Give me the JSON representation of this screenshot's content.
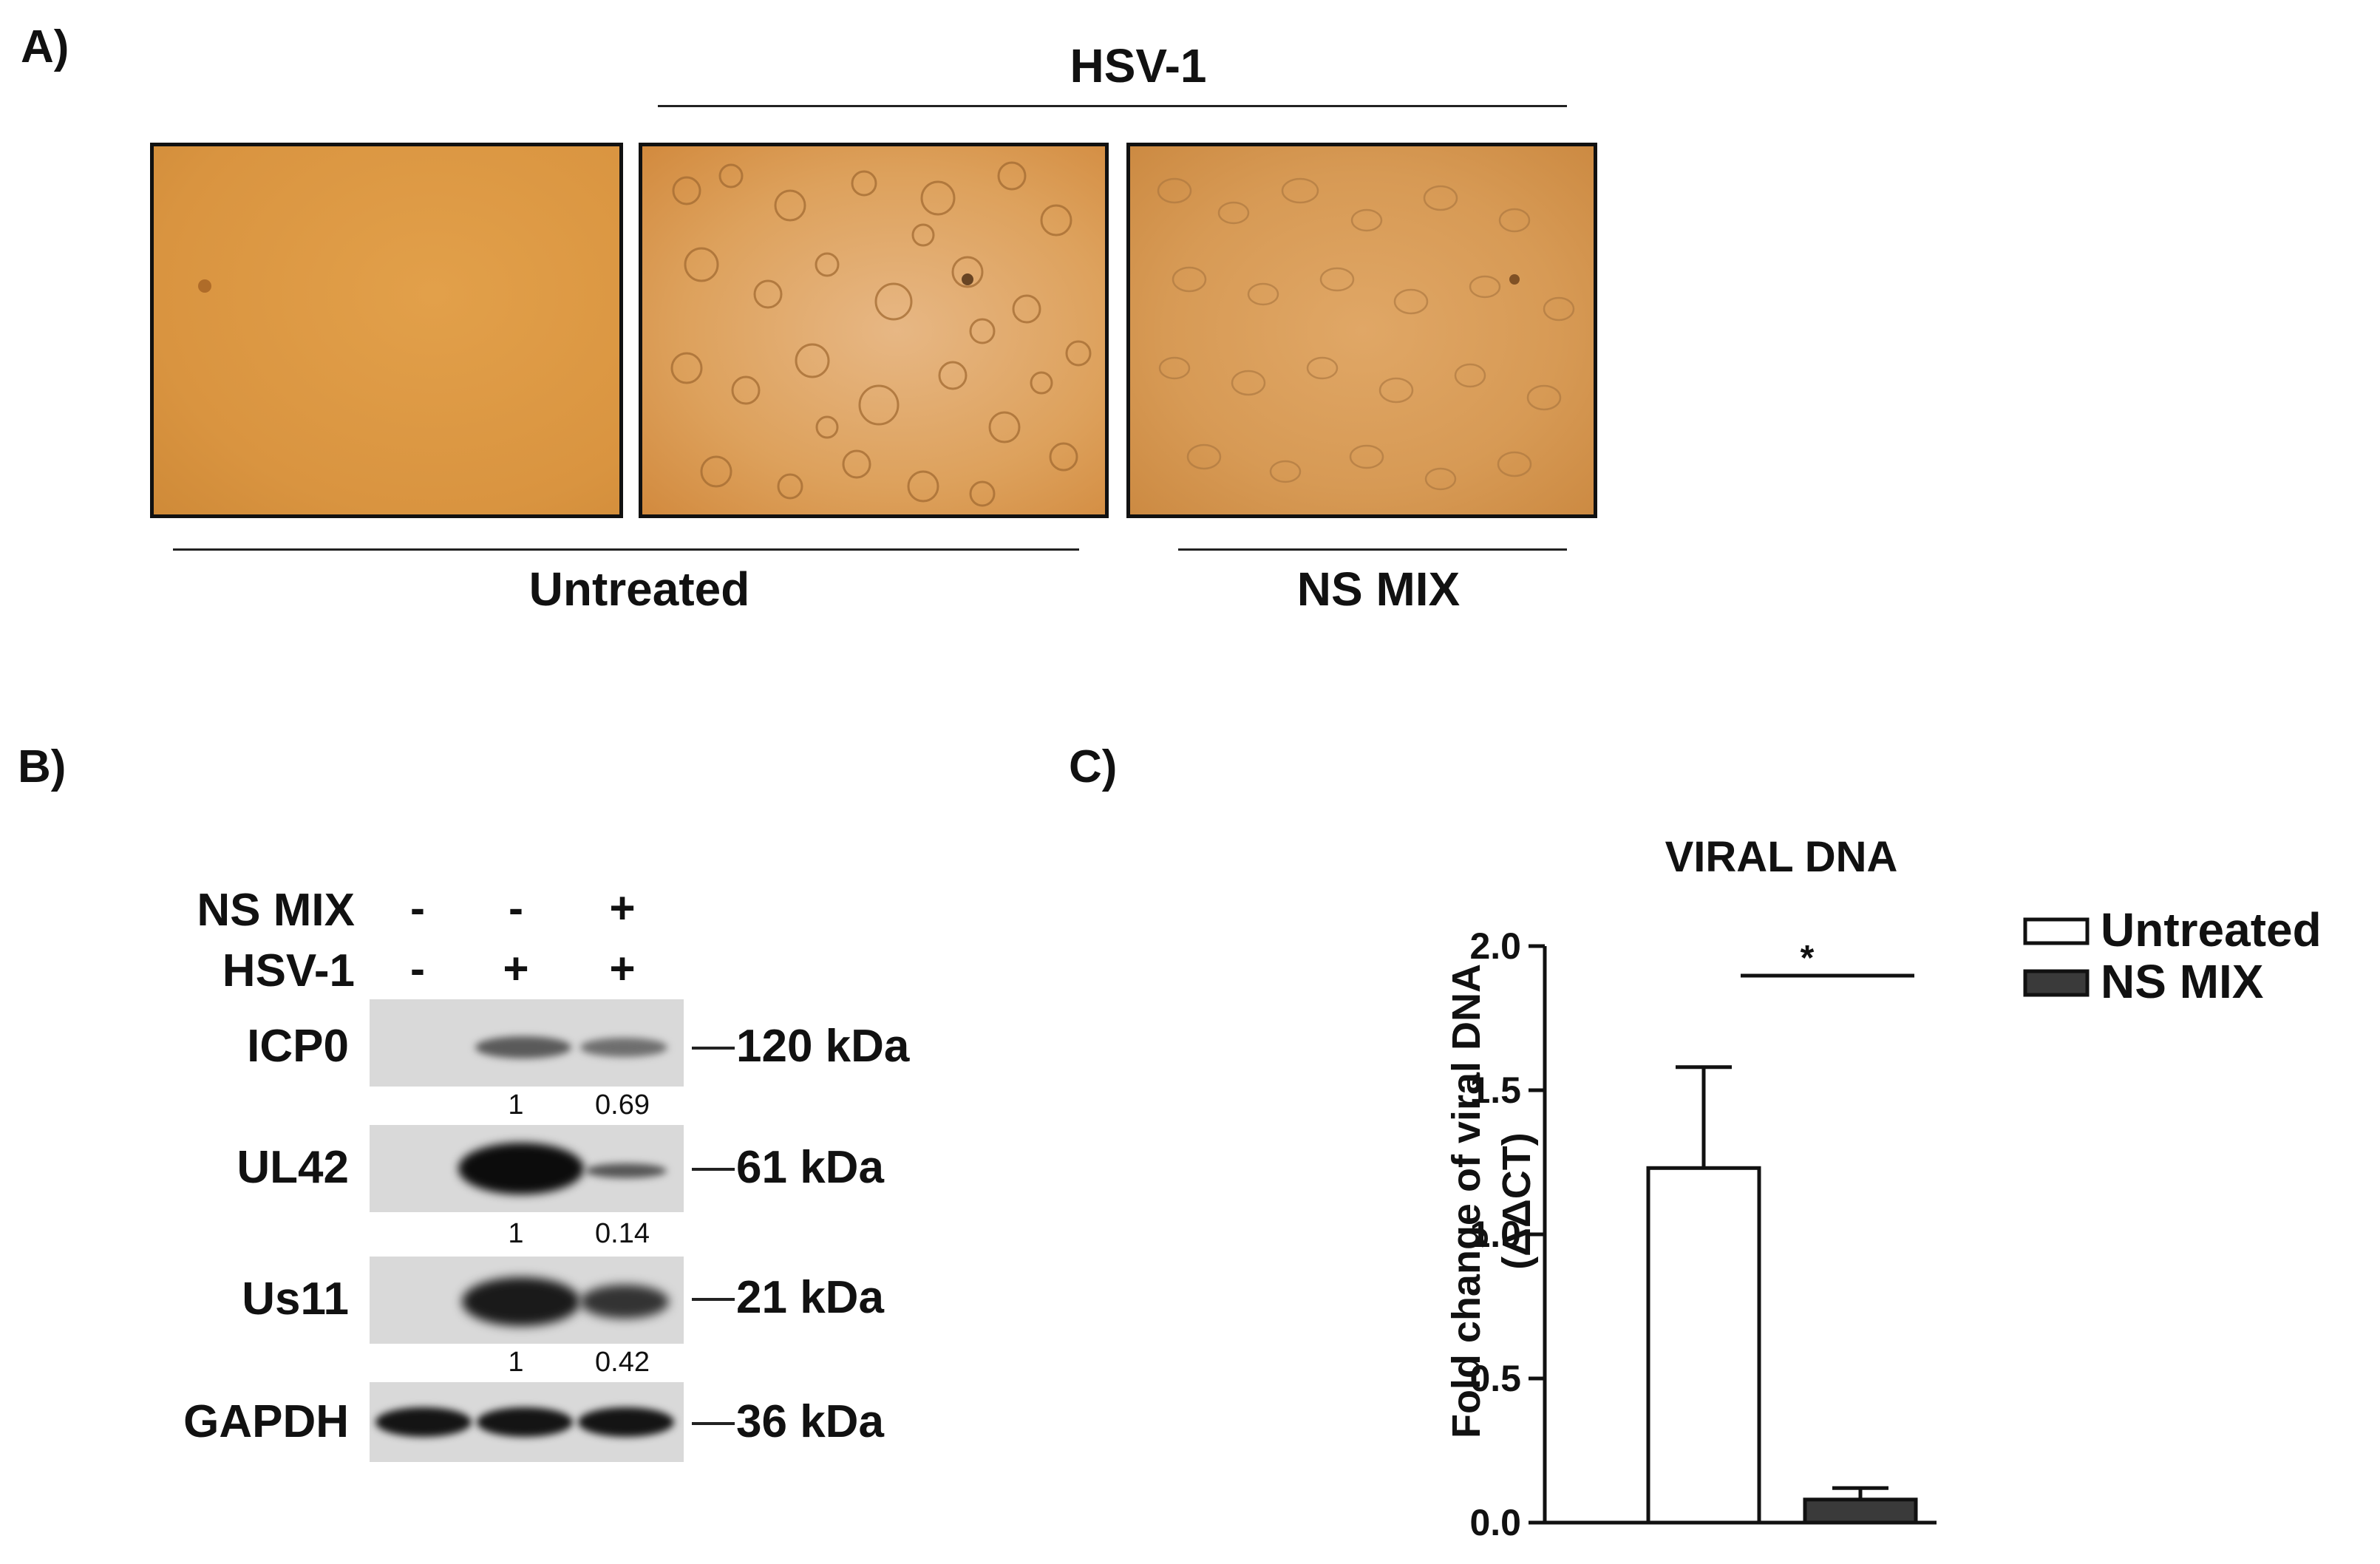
{
  "panel_a": {
    "label": "A)",
    "top_group_label": "HSV-1",
    "bottom_labels": [
      "Untreated",
      "NS MIX"
    ]
  },
  "panel_b": {
    "label": "B)",
    "rows": [
      {
        "name": "NS MIX",
        "lanes": [
          "-",
          "-",
          "+"
        ]
      },
      {
        "name": "HSV-1",
        "lanes": [
          "-",
          "+",
          "+"
        ]
      }
    ],
    "blots": [
      {
        "protein": "ICP0",
        "mw": "120 kDa",
        "quant": [
          "1",
          "0.69"
        ]
      },
      {
        "protein": "UL42",
        "mw": "61 kDa",
        "quant": [
          "1",
          "0.14"
        ]
      },
      {
        "protein": "Us11",
        "mw": "21 kDa",
        "quant": [
          "1",
          "0.42"
        ]
      },
      {
        "protein": "GAPDH",
        "mw": "36 kDa",
        "quant": []
      }
    ]
  },
  "panel_c": {
    "label": "C)",
    "significance": "*"
  },
  "chart_data": {
    "type": "bar",
    "title": "VIRAL DNA",
    "ylabel_line1": "Fold change of viral DNA",
    "ylabel_line2": "(ΔΔCT)",
    "categories": [
      "Untreated",
      "NS MIX"
    ],
    "values": [
      1.23,
      0.08
    ],
    "errors": [
      0.35,
      0.04
    ],
    "ylim": [
      0,
      2.0
    ],
    "yticks": [
      "0.0",
      "0.5",
      "1.0",
      "1.5",
      "2.0"
    ],
    "legend": [
      {
        "name": "Untreated",
        "color": "#ffffff"
      },
      {
        "name": "NS MIX",
        "color": "#3a3a3a"
      }
    ],
    "legend_position": "right",
    "colors": {
      "untreated": "#ffffff",
      "ns_mix": "#3a3a3a"
    }
  }
}
